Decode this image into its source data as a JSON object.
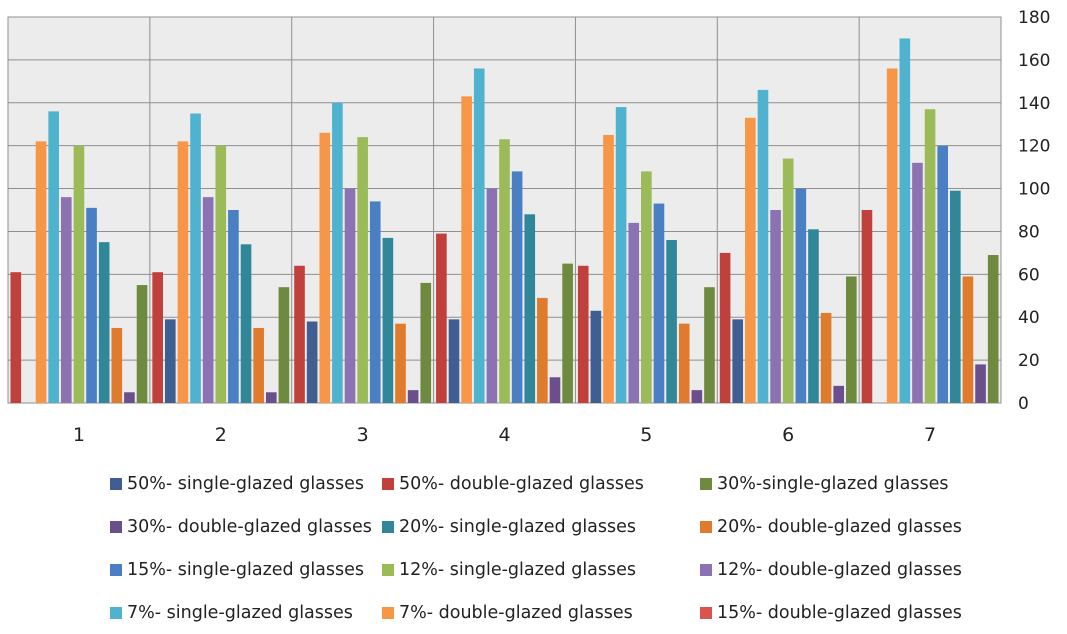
{
  "chart_data": {
    "type": "bar",
    "categories": [
      "1",
      "2",
      "3",
      "4",
      "5",
      "6",
      "7"
    ],
    "ylim": [
      0,
      180
    ],
    "y_ticks": [
      "0",
      "20",
      "40",
      "60",
      "80",
      "100",
      "120",
      "140",
      "160",
      "180"
    ],
    "y_axis_position": "right",
    "grid": true,
    "legend_position": "bottom",
    "series": [
      {
        "name": "50%- single-glazed glasses",
        "color": "#3f5f93",
        "values": [
          0,
          39,
          38,
          39,
          43,
          39,
          0
        ]
      },
      {
        "name": "50%- double-glazed glasses",
        "color": "#c0403c",
        "values": [
          61,
          61,
          64,
          79,
          64,
          70,
          90
        ]
      },
      {
        "name": "30%-single-glazed glasses",
        "color": "#6e8a3e",
        "values": [
          55,
          54,
          56,
          65,
          54,
          59,
          69
        ]
      },
      {
        "name": "30%- double-glazed glasses",
        "color": "#6b4f8c",
        "values": [
          5,
          5,
          6,
          12,
          6,
          8,
          18
        ]
      },
      {
        "name": "20%- single-glazed glasses",
        "color": "#2f8799",
        "values": [
          75,
          74,
          77,
          88,
          76,
          81,
          99
        ]
      },
      {
        "name": "20%- double-glazed glasses",
        "color": "#e07b2e",
        "values": [
          35,
          35,
          37,
          49,
          37,
          42,
          59
        ]
      },
      {
        "name": "15%- single-glazed glasses",
        "color": "#4a7fc4",
        "values": [
          91,
          90,
          94,
          108,
          93,
          100,
          120
        ]
      },
      {
        "name": "12%- single-glazed glasses",
        "color": "#9bbb59",
        "values": [
          120,
          120,
          124,
          123,
          108,
          114,
          137
        ]
      },
      {
        "name": "12%- double-glazed glasses",
        "color": "#8d72b3",
        "values": [
          96,
          96,
          100,
          100,
          84,
          90,
          112
        ]
      },
      {
        "name": "7%- single-glazed glasses",
        "color": "#4fb3cf",
        "values": [
          136,
          135,
          140,
          156,
          138,
          146,
          170
        ]
      },
      {
        "name": "7%- double-glazed glasses",
        "color": "#f79646",
        "values": [
          122,
          122,
          126,
          143,
          125,
          133,
          156
        ]
      },
      {
        "name": "15%- double-glazed glasses",
        "color": "#d9534f",
        "values": [
          0,
          0,
          0,
          0,
          0,
          0,
          0
        ]
      }
    ],
    "legend_rows": [
      [
        "50%- single-glazed glasses",
        "50%- double-glazed glasses",
        "30%-single-glazed glasses"
      ],
      [
        "30%- double-glazed glasses",
        "20%- single-glazed glasses",
        "20%- double-glazed glasses"
      ],
      [
        "15%- single-glazed glasses",
        "12%- single-glazed glasses",
        "12%- double-glazed glasses"
      ],
      [
        "7%- single-glazed glasses",
        "7%- double-glazed glasses",
        "15%- double-glazed glasses"
      ]
    ]
  }
}
